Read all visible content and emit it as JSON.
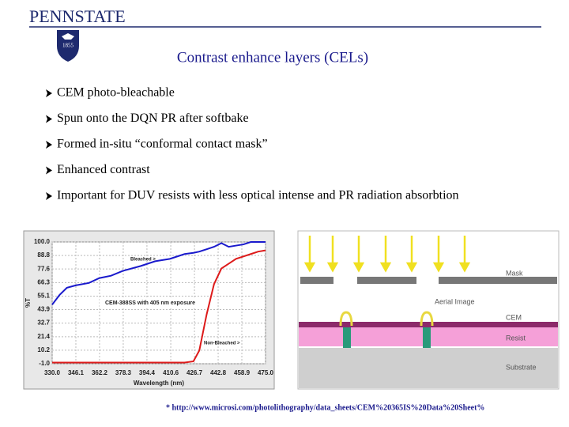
{
  "header": {
    "logo": "PENNSTATE",
    "shield_year": "1855"
  },
  "title": "Contrast enhance layers (CELs)",
  "bullets": [
    "CEM photo-bleachable",
    "Spun onto the DQN PR after softbake",
    "Formed in-situ “conformal contact mask”",
    "Enhanced contrast",
    "Important for DUV resists with less optical intense and PR radiation absorbtion"
  ],
  "chart_data": {
    "type": "line",
    "annotation": "CEM-388SS with 405 nm exposure",
    "x_label": "Wavelength (nm)",
    "y_label": "%T",
    "x": [
      330,
      335,
      340,
      346,
      355,
      362,
      370,
      378,
      390,
      400,
      410,
      420,
      426,
      430,
      435,
      440,
      445,
      450,
      455,
      460,
      465,
      470,
      475
    ],
    "series": [
      {
        "name": "Bleached >",
        "color": "#1a1acc",
        "values": [
          48,
          56,
          62,
          64,
          66,
          70,
          72,
          76,
          80,
          84,
          86,
          90,
          91,
          92,
          94,
          96,
          99,
          96,
          97,
          98,
          100,
          100,
          100
        ]
      },
      {
        "name": "Non-Bleached >",
        "color": "#dd1a1a",
        "values": [
          0,
          0,
          0,
          0,
          0,
          0,
          0,
          0,
          0,
          0,
          0,
          0,
          1,
          10,
          40,
          65,
          78,
          82,
          86,
          88,
          90,
          92,
          93
        ]
      }
    ],
    "xlim": [
      330,
      475
    ],
    "xticks": [
      {
        "value": 330,
        "label": "330.0"
      },
      346.1,
      362.2,
      378.3,
      394.4,
      410.6,
      426.7,
      442.8,
      458.9,
      {
        "value": 475,
        "label": "475.0"
      }
    ],
    "ylim": [
      -1,
      100
    ],
    "yticks": [
      {
        "value": -1,
        "label": "-1.0"
      },
      10.2,
      21.4,
      32.7,
      43.9,
      55.1,
      66.3,
      77.6,
      88.8,
      {
        "value": 100,
        "label": "100.0"
      }
    ],
    "grid": true
  },
  "diagram": {
    "labels": [
      "Mask",
      "Aerial Image",
      "CEM",
      "Resist",
      "Substrate"
    ]
  },
  "footnote": "*  http://www.microsi.com/photolithography/data_sheets/CEM%20365IS%20Data%20Sheet%"
}
